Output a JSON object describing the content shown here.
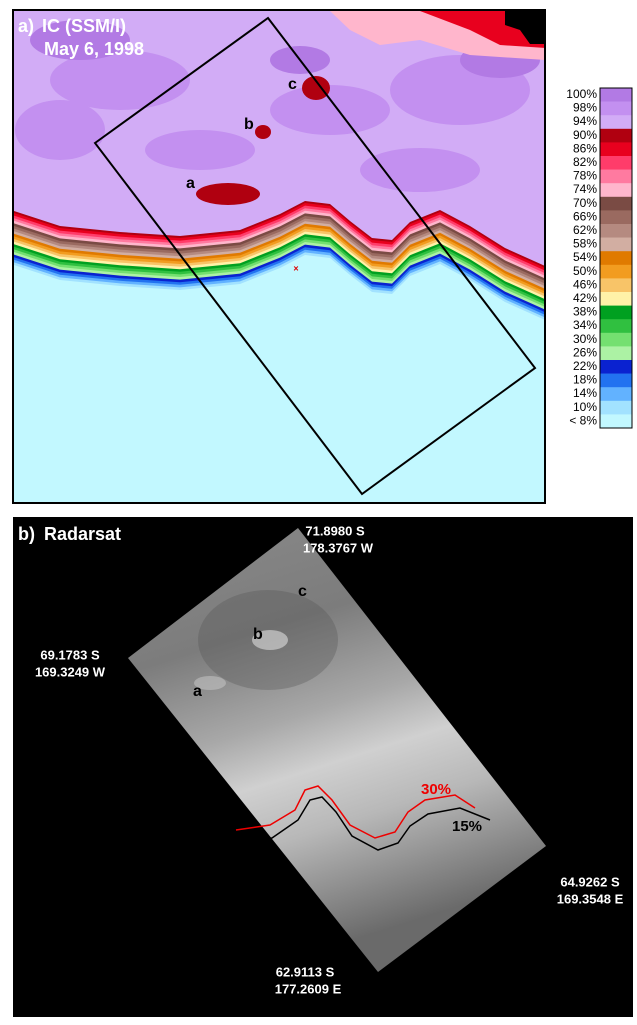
{
  "panel_a": {
    "label": "a)",
    "title": "IC (SSM/I)",
    "date": "May 6, 1998",
    "markers": [
      "a",
      "b",
      "c"
    ],
    "legend": {
      "labels": [
        "100%",
        "98%",
        "94%",
        "90%",
        "86%",
        "82%",
        "78%",
        "74%",
        "70%",
        "66%",
        "62%",
        "58%",
        "54%",
        "50%",
        "46%",
        "42%",
        "38%",
        "34%",
        "30%",
        "26%",
        "22%",
        "18%",
        "14%",
        "10%",
        "< 8%"
      ],
      "colors": [
        "#b27ae4",
        "#c390f0",
        "#d2acf6",
        "#b00010",
        "#e8001e",
        "#ff3c6a",
        "#ff7aa0",
        "#ffb6cc",
        "#7a4b44",
        "#9a6a60",
        "#b58a80",
        "#d2aea2",
        "#e07a00",
        "#f29c20",
        "#f8c468",
        "#fff2a8",
        "#00a020",
        "#30c040",
        "#74e070",
        "#acf2a4",
        "#0a22d0",
        "#2272f0",
        "#62b2ff",
        "#a2e2ff",
        "#c2f8ff"
      ]
    }
  },
  "panel_b": {
    "label": "b)",
    "title": "Radarsat",
    "markers": [
      "a",
      "b",
      "c"
    ],
    "corners": [
      {
        "lat": "71.8980 S",
        "lon": "178.3767 W"
      },
      {
        "lat": "69.1783 S",
        "lon": "169.3249 W"
      },
      {
        "lat": "64.9262 S",
        "lon": "169.3548 E"
      },
      {
        "lat": "62.9113 S",
        "lon": "177.2609 E"
      }
    ],
    "contours": [
      "30%",
      "15%"
    ]
  }
}
